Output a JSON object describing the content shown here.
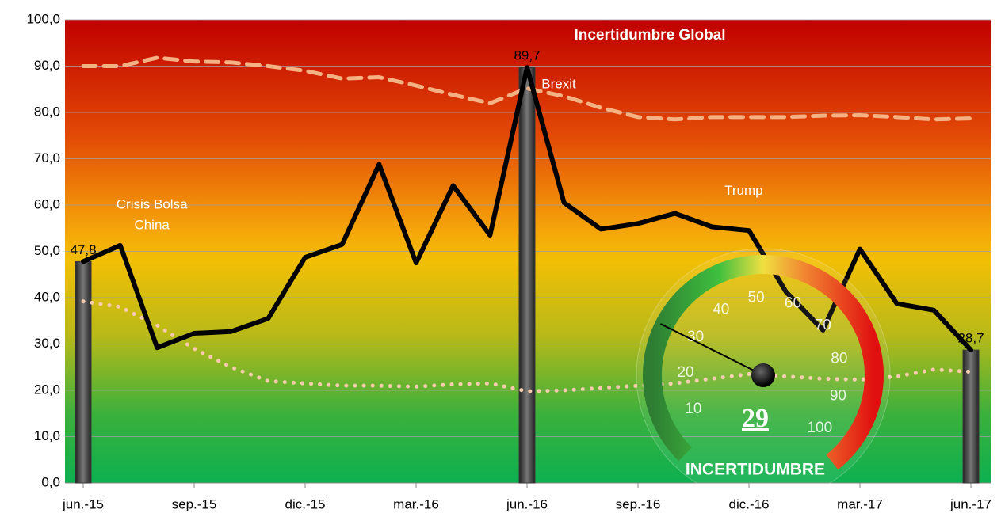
{
  "chart_data": {
    "type": "line",
    "title": "Incertidumbre Global",
    "categories": [
      "jun.-15",
      null,
      null,
      "sep.-15",
      null,
      null,
      "dic.-15",
      null,
      null,
      "mar.-16",
      null,
      null,
      "jun.-16",
      null,
      null,
      "sep.-16",
      null,
      null,
      "dic.-16",
      null,
      null,
      "mar.-17",
      null,
      null,
      "jun.-17"
    ],
    "series": [
      {
        "type": "bar",
        "color": "#3a3a3a",
        "values": [
          47.8,
          null,
          null,
          null,
          null,
          null,
          null,
          null,
          null,
          null,
          null,
          null,
          89.7,
          null,
          null,
          null,
          null,
          null,
          null,
          null,
          null,
          null,
          null,
          null,
          28.7
        ],
        "value_labels": [
          "47,8",
          null,
          null,
          null,
          null,
          null,
          null,
          null,
          null,
          null,
          null,
          null,
          "89,7",
          null,
          null,
          null,
          null,
          null,
          null,
          null,
          null,
          null,
          null,
          null,
          "28,7"
        ]
      },
      {
        "type": "line",
        "style": "dashed",
        "color": "#f4b183",
        "values": [
          90,
          90,
          91.8,
          91,
          90.8,
          90,
          89,
          87.3,
          87.6,
          85.8,
          83.8,
          82,
          85.2,
          83.5,
          81,
          79,
          78.5,
          79,
          79,
          79,
          79.3,
          79.4,
          79,
          78.5,
          78.7
        ]
      },
      {
        "type": "line",
        "style": "dotted",
        "color": "#f8cbad",
        "values": [
          39.2,
          38,
          34,
          29,
          25,
          22,
          21.5,
          21,
          21,
          20.8,
          21.3,
          21.5,
          19.8,
          20,
          20.5,
          21,
          21.5,
          22.5,
          23.5,
          23,
          22.5,
          22.3,
          23,
          24.5,
          24
        ]
      },
      {
        "type": "line",
        "style": "solid",
        "color": "#000000",
        "values": [
          47.8,
          51.3,
          29.2,
          32.3,
          32.7,
          35.5,
          48.7,
          51.5,
          68.8,
          47.5,
          64.2,
          53.5,
          89.7,
          60.5,
          54.8,
          56.0,
          58.2,
          55.3,
          54.5,
          41.3,
          33.0,
          50.5,
          38.7,
          37.3,
          28.7
        ]
      }
    ],
    "ylim": [
      0,
      100
    ],
    "yticks": [
      {
        "value": 0,
        "label": "0,0"
      },
      {
        "value": 10,
        "label": "10,0"
      },
      {
        "value": 20,
        "label": "20,0"
      },
      {
        "value": 30,
        "label": "30,0"
      },
      {
        "value": 40,
        "label": "40,0"
      },
      {
        "value": 50,
        "label": "50,0"
      },
      {
        "value": 60,
        "label": "60,0"
      },
      {
        "value": 70,
        "label": "70,0"
      },
      {
        "value": 80,
        "label": "80,0"
      },
      {
        "value": 90,
        "label": "90,0"
      },
      {
        "value": 100,
        "label": "100,0"
      }
    ],
    "grid": true,
    "annotations": [
      {
        "lines": [
          "Crisis Bolsa",
          "China"
        ],
        "category": 1,
        "y": 60
      },
      {
        "lines": [
          "Brexit"
        ],
        "category": 12,
        "y": 86
      },
      {
        "lines": [
          "Trump"
        ],
        "category": 17,
        "y": 63
      }
    ],
    "gauge": {
      "value": 29,
      "value_label": "29",
      "lim": [
        0,
        100
      ],
      "ticks": [
        10,
        20,
        30,
        40,
        50,
        60,
        70,
        80,
        90,
        100
      ],
      "label": "INCERTIDUMBRE"
    }
  }
}
